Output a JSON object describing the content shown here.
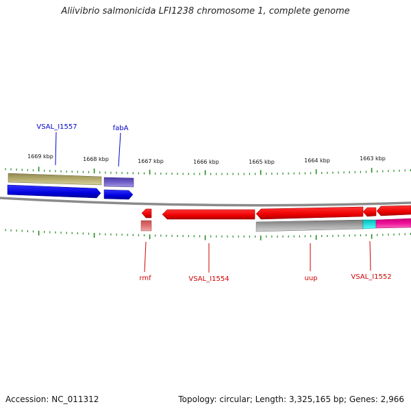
{
  "title": "Aliivibrio salmonicida LFI1238 chromosome 1, complete genome",
  "footer": {
    "accession": "Accession: NC_011312",
    "summary": "Topology: circular; Length: 3,325,165 bp; Genes: 2,966"
  },
  "ruler": {
    "unit": "kbp",
    "tick_labels": [
      {
        "kbp": 1669,
        "label": "1669 kbp"
      },
      {
        "kbp": 1668,
        "label": "1668 kbp"
      },
      {
        "kbp": 1667,
        "label": "1667 kbp"
      },
      {
        "kbp": 1666,
        "label": "1666 kbp"
      },
      {
        "kbp": 1665,
        "label": "1665 kbp"
      },
      {
        "kbp": 1664,
        "label": "1664 kbp"
      },
      {
        "kbp": 1663,
        "label": "1663 kbp"
      }
    ]
  },
  "gene_labels_top": [
    {
      "name": "VSAL_I1557",
      "color": "#0000cc"
    },
    {
      "name": "fabA",
      "color": "#0000cc"
    }
  ],
  "gene_labels_bottom": [
    {
      "name": "rmf",
      "color": "#cc0000"
    },
    {
      "name": "VSAL_I1554",
      "color": "#cc0000"
    },
    {
      "name": "uup",
      "color": "#cc0000"
    },
    {
      "name": "VSAL_I1552",
      "color": "#cc0000"
    }
  ],
  "colors": {
    "forward_gene": "#0000e0",
    "forward_cds": "#b8b070",
    "fabA_cds": "#7060c8",
    "reverse_gene": "#ee0000",
    "reverse_cds_grey": "#a8a8a8",
    "rmf_cds": "#e07070",
    "cyan_feature": "#00dddd",
    "magenta_feature": "#ee1199",
    "backbone": "#888888",
    "tick": "#228822"
  }
}
